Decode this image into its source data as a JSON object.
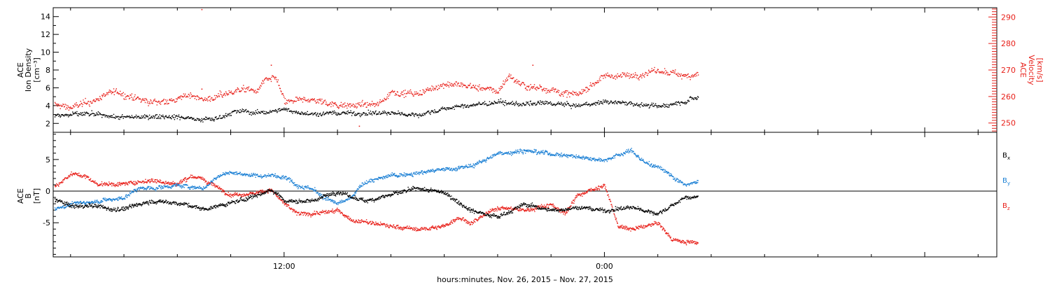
{
  "chart_data": [
    {
      "type": "scatter",
      "panel": "top",
      "ylabel_left": [
        "ACE",
        "Ion Density",
        "[cm⁻³]"
      ],
      "ylabel_right": [
        "ACE",
        "Velocity",
        "[km/s]"
      ],
      "ylim_left": [
        1,
        15
      ],
      "ylim_right": [
        246.5,
        293.5
      ],
      "yticks_left": [
        2,
        4,
        6,
        8,
        10,
        12,
        14
      ],
      "yticks_right": [
        250,
        260,
        270,
        280,
        290
      ],
      "xlim_hours": [
        3.35,
        38.7
      ],
      "series": [
        {
          "axis": "left",
          "color": "#000000",
          "anchors": [
            [
              3.4,
              2.9
            ],
            [
              4.5,
              3.1
            ],
            [
              6.0,
              2.7
            ],
            [
              7.5,
              2.9
            ],
            [
              9.0,
              2.5
            ],
            [
              9.5,
              2.6
            ],
            [
              10.0,
              3.3
            ],
            [
              10.5,
              3.4
            ],
            [
              11.0,
              3.2
            ],
            [
              12.0,
              3.6
            ],
            [
              13.0,
              3.1
            ],
            [
              14.0,
              3.2
            ],
            [
              15.0,
              3.2
            ],
            [
              16.0,
              3.2
            ],
            [
              17.0,
              3.0
            ],
            [
              18.0,
              3.7
            ],
            [
              19.0,
              4.1
            ],
            [
              20.0,
              4.4
            ],
            [
              21.0,
              4.2
            ],
            [
              22.0,
              4.3
            ],
            [
              23.0,
              4.0
            ],
            [
              24.0,
              4.5
            ],
            [
              25.0,
              4.3
            ],
            [
              26.0,
              3.9
            ],
            [
              27.0,
              4.6
            ],
            [
              27.5,
              5.0
            ]
          ]
        },
        {
          "axis": "right",
          "color": "#e8201a",
          "anchors": [
            [
              3.4,
              257
            ],
            [
              4.0,
              256
            ],
            [
              5.0,
              259
            ],
            [
              5.5,
              262
            ],
            [
              6.0,
              261
            ],
            [
              6.5,
              259
            ],
            [
              7.0,
              258
            ],
            [
              8.0,
              259
            ],
            [
              8.5,
              261
            ],
            [
              9.0,
              259
            ],
            [
              9.5,
              260
            ],
            [
              10.0,
              262
            ],
            [
              10.5,
              263
            ],
            [
              11.0,
              262
            ],
            [
              11.2,
              266
            ],
            [
              11.7,
              267
            ],
            [
              12.0,
              258
            ],
            [
              13.0,
              259
            ],
            [
              14.0,
              257
            ],
            [
              15.0,
              257
            ],
            [
              15.5,
              257
            ],
            [
              16.0,
              262
            ],
            [
              17.0,
              261
            ],
            [
              17.5,
              263
            ],
            [
              18.0,
              265
            ],
            [
              19.0,
              264
            ],
            [
              19.5,
              263
            ],
            [
              20.0,
              262
            ],
            [
              20.4,
              268
            ],
            [
              21.0,
              264
            ],
            [
              22.0,
              263
            ],
            [
              22.5,
              261
            ],
            [
              23.0,
              261
            ],
            [
              24.0,
              268
            ],
            [
              25.0,
              268
            ],
            [
              26.0,
              270
            ],
            [
              27.0,
              268
            ],
            [
              27.5,
              269
            ]
          ]
        }
      ],
      "outliers": [
        {
          "axis": "right",
          "x": 8.9,
          "y": 293
        },
        {
          "axis": "right",
          "x": 8.9,
          "y": 263
        },
        {
          "axis": "right",
          "x": 11.5,
          "y": 272
        },
        {
          "axis": "right",
          "x": 21.3,
          "y": 272
        },
        {
          "axis": "right",
          "x": 14.8,
          "y": 249
        }
      ]
    },
    {
      "type": "scatter",
      "panel": "bottom",
      "ylabel_left": [
        "ACE",
        "B",
        "[nT]"
      ],
      "ylim": [
        -10.4,
        9.3
      ],
      "yticks": [
        -5,
        0,
        5
      ],
      "zero_line": true,
      "xlim_hours": [
        3.35,
        38.7
      ],
      "legend": [
        {
          "label": "B",
          "sub": "x",
          "color": "#000000"
        },
        {
          "label": "B",
          "sub": "y",
          "color": "#1a7fd4"
        },
        {
          "label": "B",
          "sub": "z",
          "color": "#e8201a"
        }
      ],
      "series": [
        {
          "name": "Bx",
          "color": "#000000",
          "anchors": [
            [
              3.4,
              -1.2
            ],
            [
              4.0,
              -2.3
            ],
            [
              5.0,
              -2.3
            ],
            [
              5.5,
              -2.8
            ],
            [
              6.0,
              -2.7
            ],
            [
              7.0,
              -1.5
            ],
            [
              8.0,
              -1.8
            ],
            [
              9.0,
              -2.8
            ],
            [
              9.8,
              -2.0
            ],
            [
              10.3,
              -1.5
            ],
            [
              11.0,
              -0.5
            ],
            [
              11.5,
              0.3
            ],
            [
              11.8,
              -0.5
            ],
            [
              12.0,
              -1.5
            ],
            [
              13.0,
              -1.5
            ],
            [
              14.0,
              0.0
            ],
            [
              14.5,
              -0.8
            ],
            [
              15.0,
              -1.5
            ],
            [
              16.0,
              -0.5
            ],
            [
              17.0,
              0.5
            ],
            [
              18.0,
              -0.2
            ],
            [
              19.0,
              -3.0
            ],
            [
              19.5,
              -3.5
            ],
            [
              20.0,
              -4.0
            ],
            [
              21.0,
              -2.0
            ],
            [
              22.0,
              -3.0
            ],
            [
              23.0,
              -2.5
            ],
            [
              24.0,
              -3.0
            ],
            [
              25.0,
              -2.5
            ],
            [
              26.0,
              -3.5
            ],
            [
              27.0,
              -1.0
            ],
            [
              27.5,
              -0.8
            ]
          ]
        },
        {
          "name": "By",
          "color": "#1a7fd4",
          "anchors": [
            [
              3.4,
              -2.7
            ],
            [
              4.0,
              -2.0
            ],
            [
              5.0,
              -1.5
            ],
            [
              6.0,
              -1.0
            ],
            [
              6.5,
              0.5
            ],
            [
              7.0,
              0.5
            ],
            [
              8.0,
              1.0
            ],
            [
              9.0,
              0.5
            ],
            [
              9.5,
              2.5
            ],
            [
              10.0,
              3.0
            ],
            [
              11.0,
              2.5
            ],
            [
              12.0,
              2.5
            ],
            [
              12.5,
              1.0
            ],
            [
              13.0,
              0.5
            ],
            [
              13.5,
              -1.0
            ],
            [
              14.0,
              -2.0
            ],
            [
              14.5,
              -1.0
            ],
            [
              15.0,
              1.5
            ],
            [
              16.0,
              2.5
            ],
            [
              17.0,
              3.0
            ],
            [
              18.0,
              3.5
            ],
            [
              19.0,
              4.0
            ],
            [
              20.0,
              6.0
            ],
            [
              21.0,
              6.5
            ],
            [
              22.0,
              6.0
            ],
            [
              23.0,
              5.5
            ],
            [
              24.0,
              5.0
            ],
            [
              25.0,
              6.5
            ],
            [
              25.5,
              4.5
            ],
            [
              26.0,
              4.0
            ],
            [
              27.0,
              1.0
            ],
            [
              27.5,
              1.5
            ]
          ]
        },
        {
          "name": "Bz",
          "color": "#e8201a",
          "anchors": [
            [
              3.4,
              0.8
            ],
            [
              4.0,
              2.8
            ],
            [
              4.5,
              2.5
            ],
            [
              5.0,
              1.2
            ],
            [
              6.0,
              1.2
            ],
            [
              7.0,
              1.8
            ],
            [
              8.0,
              1.2
            ],
            [
              8.5,
              2.5
            ],
            [
              9.0,
              1.8
            ],
            [
              10.0,
              -0.5
            ],
            [
              11.0,
              -0.2
            ],
            [
              11.5,
              0.3
            ],
            [
              12.0,
              -2.0
            ],
            [
              12.5,
              -3.5
            ],
            [
              13.0,
              -3.5
            ],
            [
              14.0,
              -3.0
            ],
            [
              14.5,
              -4.5
            ],
            [
              15.0,
              -4.8
            ],
            [
              16.0,
              -5.5
            ],
            [
              17.0,
              -6.0
            ],
            [
              18.0,
              -5.5
            ],
            [
              18.5,
              -4.0
            ],
            [
              19.0,
              -5.0
            ],
            [
              20.0,
              -2.5
            ],
            [
              21.0,
              -3.0
            ],
            [
              22.0,
              -2.0
            ],
            [
              22.5,
              -3.5
            ],
            [
              23.0,
              -0.5
            ],
            [
              24.0,
              1.0
            ],
            [
              24.5,
              -5.5
            ],
            [
              25.0,
              -6.0
            ],
            [
              26.0,
              -5.0
            ],
            [
              26.5,
              -7.5
            ],
            [
              27.0,
              -8.0
            ],
            [
              27.5,
              -8.0
            ]
          ]
        }
      ]
    }
  ],
  "x_axis": {
    "tick_labels": [
      {
        "hour": 12,
        "label": "12:00"
      },
      {
        "hour": 24,
        "label": "0:00"
      }
    ],
    "title": "hours:minutes, Nov. 26, 2015 – Nov. 27, 2015"
  },
  "colors": {
    "black": "#000000",
    "red": "#e8201a",
    "blue": "#1a7fd4"
  }
}
